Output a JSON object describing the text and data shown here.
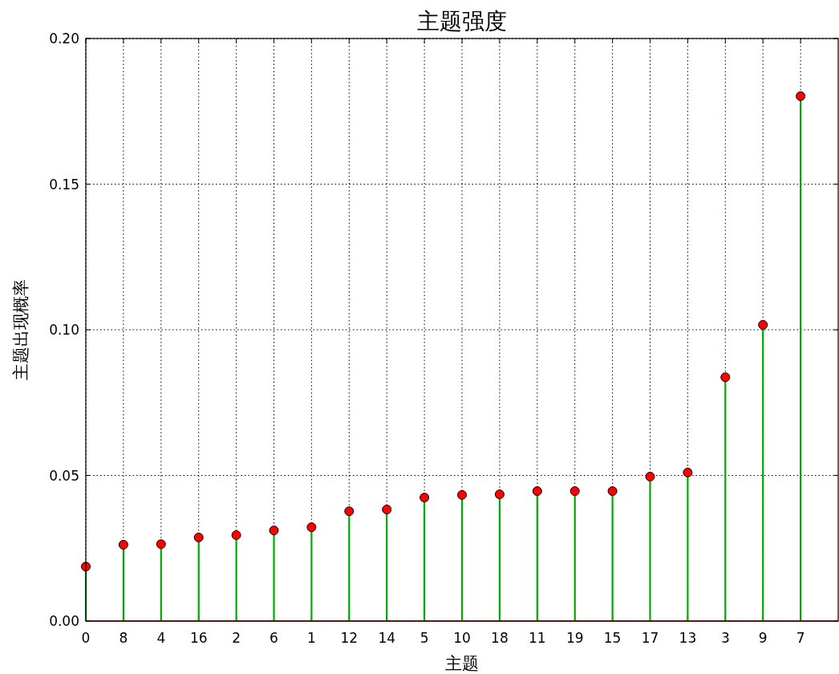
{
  "chart_data": {
    "type": "lollipop",
    "title": "主题强度",
    "xlabel": "主题",
    "ylabel": "主题出现概率",
    "categories": [
      "0",
      "8",
      "4",
      "16",
      "2",
      "6",
      "1",
      "12",
      "14",
      "5",
      "10",
      "18",
      "11",
      "19",
      "15",
      "17",
      "13",
      "3",
      "9",
      "7"
    ],
    "values": [
      0.0187,
      0.0262,
      0.0264,
      0.0287,
      0.0295,
      0.0311,
      0.0322,
      0.0377,
      0.0383,
      0.0424,
      0.0433,
      0.0435,
      0.0446,
      0.0446,
      0.0446,
      0.0496,
      0.051,
      0.0837,
      0.1017,
      0.1802
    ],
    "color": "#ff0000",
    "marker": "circle",
    "grid": true,
    "ylim": [
      0,
      0.2
    ],
    "yticks": [
      {
        "value": 0,
        "label": "0.00"
      },
      {
        "value": 0.05,
        "label": "0.05"
      },
      {
        "value": 0.1,
        "label": "0.10"
      },
      {
        "value": 0.15,
        "label": "0.15"
      },
      {
        "value": 0.2,
        "label": "0.20"
      }
    ]
  }
}
